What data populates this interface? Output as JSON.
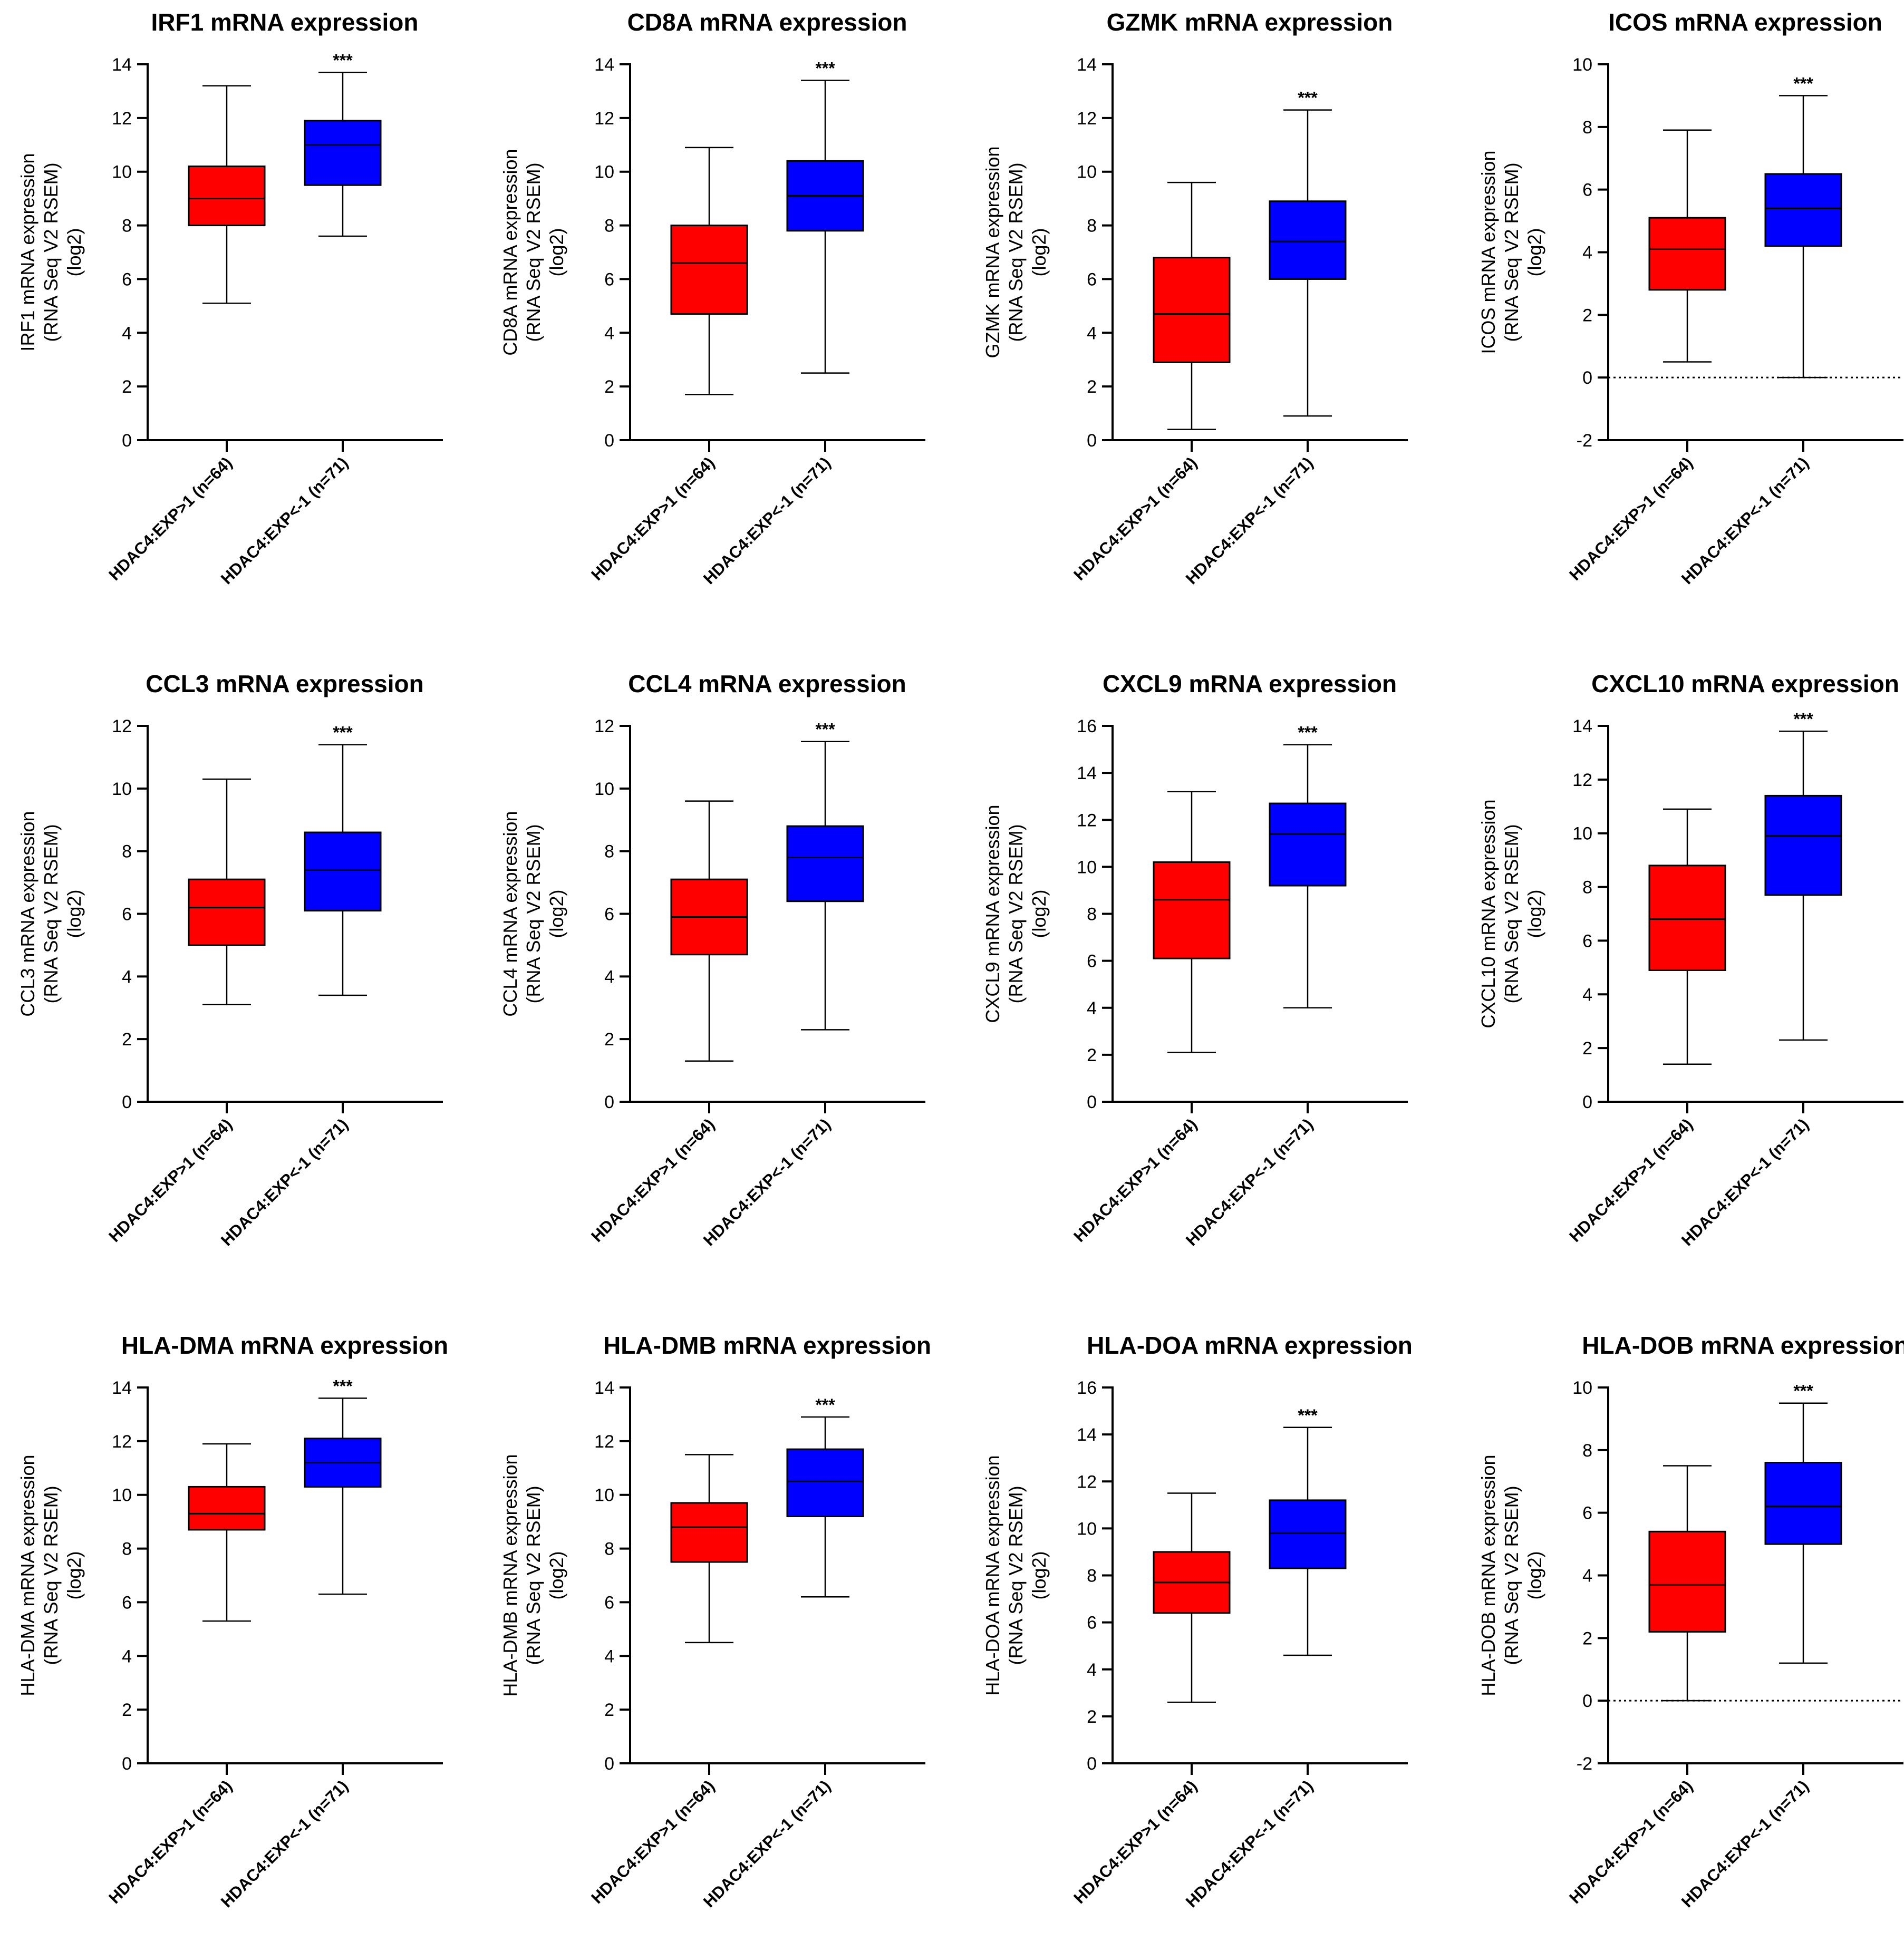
{
  "figure": {
    "categories": [
      "HDAC4:EXP>1 (n=64)",
      "HDAC4:EXP<-1 (n=71)"
    ],
    "ylabel_line2": "(RNA Seq V2 RSEM)",
    "ylabel_line3": "(log2)",
    "colors": {
      "group_high": "#ff0000",
      "group_low": "#0000ff",
      "axis": "#000000"
    }
  },
  "chart_data": [
    {
      "type": "box",
      "title": "IRF1 mRNA expression",
      "ylabel": "IRF1 mRNA expression",
      "ylim": [
        0,
        14
      ],
      "yticks": [
        "0",
        "2",
        "4",
        "6",
        "8",
        "10",
        "12",
        "14"
      ],
      "zero_line": false,
      "significance": "***",
      "boxes": [
        {
          "min": 5.1,
          "q1": 8.0,
          "median": 9.0,
          "q3": 10.2,
          "max": 13.2
        },
        {
          "min": 7.6,
          "q1": 9.5,
          "median": 11.0,
          "q3": 11.9,
          "max": 13.7
        }
      ]
    },
    {
      "type": "box",
      "title": "CD8A mRNA expression",
      "ylabel": "CD8A mRNA expression",
      "ylim": [
        0,
        14
      ],
      "yticks": [
        "0",
        "2",
        "4",
        "6",
        "8",
        "10",
        "12",
        "14"
      ],
      "zero_line": false,
      "significance": "***",
      "boxes": [
        {
          "min": 1.7,
          "q1": 4.7,
          "median": 6.6,
          "q3": 8.0,
          "max": 10.9
        },
        {
          "min": 2.5,
          "q1": 7.8,
          "median": 9.1,
          "q3": 10.4,
          "max": 13.4
        }
      ]
    },
    {
      "type": "box",
      "title": "GZMK mRNA expression",
      "ylabel": "GZMK mRNA expression",
      "ylim": [
        0,
        14
      ],
      "yticks": [
        "0",
        "2",
        "4",
        "6",
        "8",
        "10",
        "12",
        "14"
      ],
      "zero_line": false,
      "significance": "***",
      "boxes": [
        {
          "min": 0.4,
          "q1": 2.9,
          "median": 4.7,
          "q3": 6.8,
          "max": 9.6
        },
        {
          "min": 0.9,
          "q1": 6.0,
          "median": 7.4,
          "q3": 8.9,
          "max": 12.3
        }
      ]
    },
    {
      "type": "box",
      "title": "ICOS  mRNA expression",
      "ylabel": "ICOS mRNA expression",
      "ylim": [
        -2,
        10
      ],
      "yticks": [
        "-2",
        "0",
        "2",
        "4",
        "6",
        "8",
        "10"
      ],
      "zero_line": true,
      "significance": "***",
      "boxes": [
        {
          "min": 0.5,
          "q1": 2.8,
          "median": 4.1,
          "q3": 5.1,
          "max": 7.9
        },
        {
          "min": 0.0,
          "q1": 4.2,
          "median": 5.4,
          "q3": 6.5,
          "max": 9.0
        }
      ]
    },
    {
      "type": "box",
      "title": "CCL3 mRNA expression",
      "ylabel": "CCL3 mRNA expression",
      "ylim": [
        0,
        12
      ],
      "yticks": [
        "0",
        "2",
        "4",
        "6",
        "8",
        "10",
        "12"
      ],
      "zero_line": false,
      "significance": "***",
      "boxes": [
        {
          "min": 3.1,
          "q1": 5.0,
          "median": 6.2,
          "q3": 7.1,
          "max": 10.3
        },
        {
          "min": 3.4,
          "q1": 6.1,
          "median": 7.4,
          "q3": 8.6,
          "max": 11.4
        }
      ]
    },
    {
      "type": "box",
      "title": "CCL4 mRNA expression",
      "ylabel": "CCL4 mRNA expression",
      "ylim": [
        0,
        12
      ],
      "yticks": [
        "0",
        "2",
        "4",
        "6",
        "8",
        "10",
        "12"
      ],
      "zero_line": false,
      "significance": "***",
      "boxes": [
        {
          "min": 1.3,
          "q1": 4.7,
          "median": 5.9,
          "q3": 7.1,
          "max": 9.6
        },
        {
          "min": 2.3,
          "q1": 6.4,
          "median": 7.8,
          "q3": 8.8,
          "max": 11.5
        }
      ]
    },
    {
      "type": "box",
      "title": "CXCL9 mRNA expression",
      "ylabel": "CXCL9 mRNA expression",
      "ylim": [
        0,
        16
      ],
      "yticks": [
        "0",
        "2",
        "4",
        "6",
        "8",
        "10",
        "12",
        "14",
        "16"
      ],
      "zero_line": false,
      "significance": "***",
      "boxes": [
        {
          "min": 2.1,
          "q1": 6.1,
          "median": 8.6,
          "q3": 10.2,
          "max": 13.2
        },
        {
          "min": 4.0,
          "q1": 9.2,
          "median": 11.4,
          "q3": 12.7,
          "max": 15.2
        }
      ]
    },
    {
      "type": "box",
      "title": "CXCL10 mRNA expression",
      "ylabel": "CXCL10 mRNA expression",
      "ylim": [
        0,
        14
      ],
      "yticks": [
        "0",
        "2",
        "4",
        "6",
        "8",
        "10",
        "12",
        "14"
      ],
      "zero_line": false,
      "significance": "***",
      "boxes": [
        {
          "min": 1.4,
          "q1": 4.9,
          "median": 6.8,
          "q3": 8.8,
          "max": 10.9
        },
        {
          "min": 2.3,
          "q1": 7.7,
          "median": 9.9,
          "q3": 11.4,
          "max": 13.8
        }
      ]
    },
    {
      "type": "box",
      "title": "HLA-DMA mRNA expression",
      "ylabel": "HLA-DMA mRNA expression",
      "ylim": [
        0,
        14
      ],
      "yticks": [
        "0",
        "2",
        "4",
        "6",
        "8",
        "10",
        "12",
        "14"
      ],
      "zero_line": false,
      "significance": "***",
      "boxes": [
        {
          "min": 5.3,
          "q1": 8.7,
          "median": 9.3,
          "q3": 10.3,
          "max": 11.9
        },
        {
          "min": 6.3,
          "q1": 10.3,
          "median": 11.2,
          "q3": 12.1,
          "max": 13.6
        }
      ]
    },
    {
      "type": "box",
      "title": "HLA-DMB mRNA expression",
      "ylabel": "HLA-DMB mRNA expression",
      "ylim": [
        0,
        14
      ],
      "yticks": [
        "0",
        "2",
        "4",
        "6",
        "8",
        "10",
        "12",
        "14"
      ],
      "zero_line": false,
      "significance": "***",
      "boxes": [
        {
          "min": 4.5,
          "q1": 7.5,
          "median": 8.8,
          "q3": 9.7,
          "max": 11.5
        },
        {
          "min": 6.2,
          "q1": 9.2,
          "median": 10.5,
          "q3": 11.7,
          "max": 12.9
        }
      ]
    },
    {
      "type": "box",
      "title": "HLA-DOA mRNA expression",
      "ylabel": "HLA-DOA mRNA expression",
      "ylim": [
        0,
        16
      ],
      "yticks": [
        "0",
        "2",
        "4",
        "6",
        "8",
        "10",
        "12",
        "14",
        "16"
      ],
      "zero_line": false,
      "significance": "***",
      "boxes": [
        {
          "min": 2.6,
          "q1": 6.4,
          "median": 7.7,
          "q3": 9.0,
          "max": 11.5
        },
        {
          "min": 4.6,
          "q1": 8.3,
          "median": 9.8,
          "q3": 11.2,
          "max": 14.3
        }
      ]
    },
    {
      "type": "box",
      "title": "HLA-DOB mRNA expression",
      "ylabel": "HLA-DOB mRNA expression",
      "ylim": [
        -2,
        10
      ],
      "yticks": [
        "-2",
        "0",
        "2",
        "4",
        "6",
        "8",
        "10"
      ],
      "zero_line": true,
      "significance": "***",
      "boxes": [
        {
          "min": 0.0,
          "q1": 2.2,
          "median": 3.7,
          "q3": 5.4,
          "max": 7.5
        },
        {
          "min": 1.2,
          "q1": 5.0,
          "median": 6.2,
          "q3": 7.6,
          "max": 9.5
        }
      ]
    }
  ]
}
